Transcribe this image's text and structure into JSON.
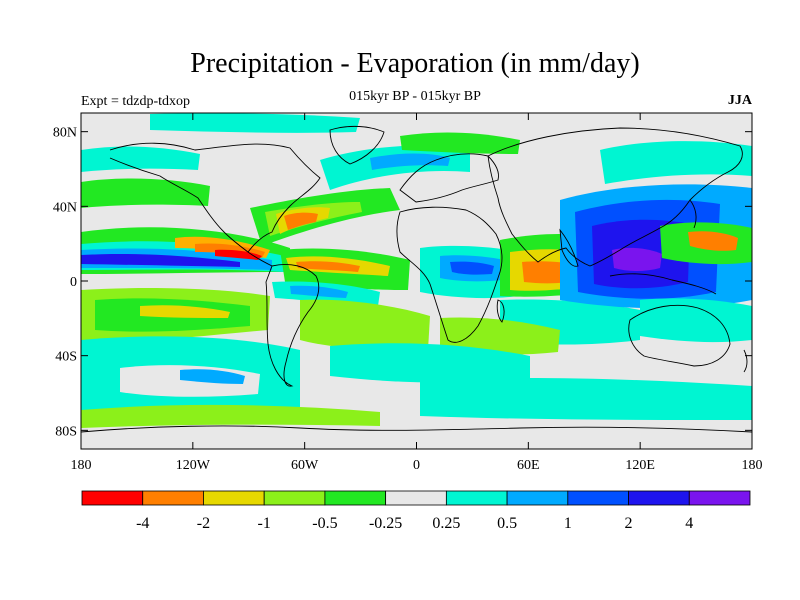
{
  "title": "Precipitation - Evaporation (in mm/day)",
  "subtitle": "015kyr BP - 015kyr BP",
  "experiment": "Expt = tdzdp-tdxop",
  "season": "JJA",
  "map": {
    "background_color": "#e8e8e8",
    "lon_ticks": [
      {
        "lon": -180,
        "label": "180"
      },
      {
        "lon": -120,
        "label": "120W"
      },
      {
        "lon": -60,
        "label": "60W"
      },
      {
        "lon": 0,
        "label": "0"
      },
      {
        "lon": 60,
        "label": "60E"
      },
      {
        "lon": 120,
        "label": "120E"
      },
      {
        "lon": 180,
        "label": "180"
      }
    ],
    "lat_ticks": [
      {
        "lat": 80,
        "label": "80N"
      },
      {
        "lat": 40,
        "label": "40N"
      },
      {
        "lat": 0,
        "label": "0"
      },
      {
        "lat": -40,
        "label": "40S"
      },
      {
        "lat": -80,
        "label": "80S"
      }
    ],
    "lat_range": [
      -90,
      90
    ],
    "lon_range": [
      -180,
      180
    ]
  },
  "colorbar": {
    "colors": [
      "#ff0000",
      "#ff7f00",
      "#e6d800",
      "#8cf01a",
      "#22e822",
      "#e8e8e8",
      "#00f5d2",
      "#00aaff",
      "#0050ff",
      "#1e14ee",
      "#7a14ee"
    ],
    "labels": [
      "-4",
      "-2",
      "-1",
      "-0.5",
      "-0.25",
      "0.25",
      "0.5",
      "1",
      "2",
      "4"
    ]
  }
}
